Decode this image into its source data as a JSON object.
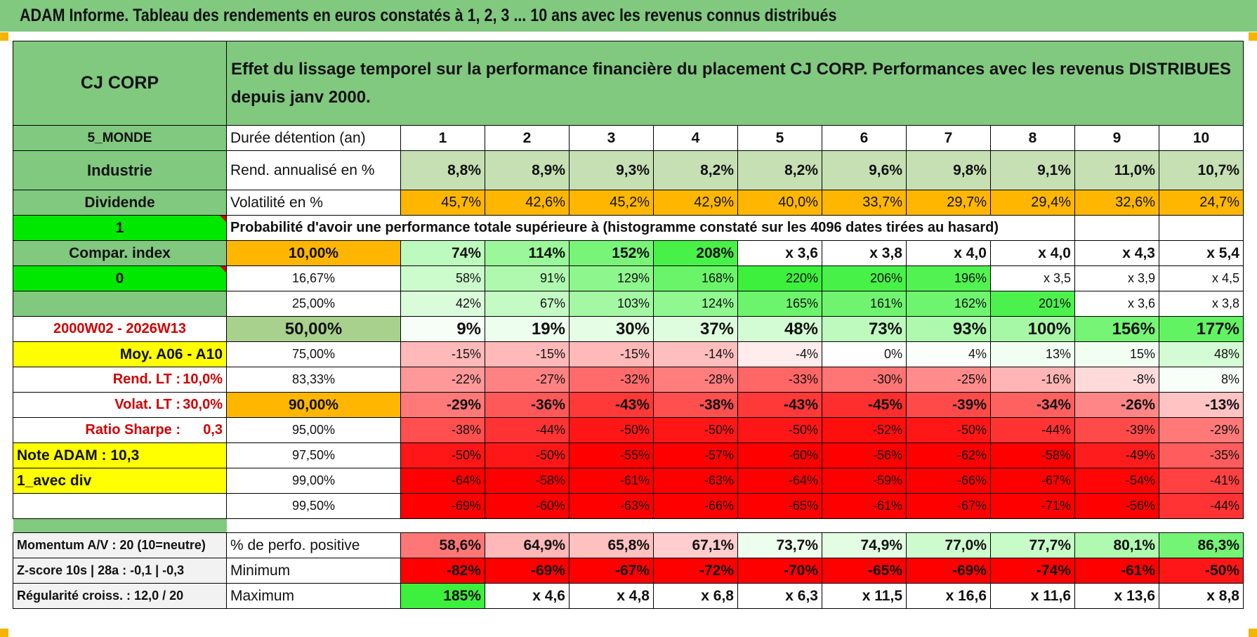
{
  "title": "ADAM Informe. Tableau des rendements en euros constatés à 1, 2, 3 ... 10 ans avec les revenus connus distribués",
  "colors": {
    "green_header": "#80c97f",
    "orange": "#ffb600",
    "yellow": "#ffff00",
    "bright_green": "#00e800",
    "red_text": "#d40000"
  },
  "header": {
    "name": "CJ CORP",
    "description": "Effet du lissage temporel sur la performance financière du placement CJ CORP. Performances avec les revenus DISTRIBUES depuis janv 2000."
  },
  "rows": {
    "duration": {
      "side": "5_MONDE",
      "label": "Durée détention (an)",
      "values": [
        "1",
        "2",
        "3",
        "4",
        "5",
        "6",
        "7",
        "8",
        "9",
        "10"
      ]
    },
    "rend": {
      "side": "Industrie",
      "label": "Rend. annualisé en %",
      "values": [
        "8,8%",
        "8,9%",
        "9,3%",
        "8,2%",
        "8,2%",
        "9,6%",
        "9,8%",
        "9,1%",
        "11,0%",
        "10,7%"
      ]
    },
    "vol": {
      "side": "Dividende",
      "label": "Volatilité en %",
      "values": [
        "45,7%",
        "42,6%",
        "45,2%",
        "42,9%",
        "40,0%",
        "33,7%",
        "29,7%",
        "29,4%",
        "32,6%",
        "24,7%"
      ]
    },
    "prob_header": {
      "side": "1",
      "text": "Probabilité d'avoir une performance totale supérieure à (histogramme constaté sur les 4096 dates tirées au hasard)"
    }
  },
  "prob_rows": [
    {
      "side": "Compar. index",
      "pct": "10,00%",
      "values": [
        "74%",
        "114%",
        "152%",
        "208%",
        "x 3,6",
        "x 3,8",
        "x 4,0",
        "x 4,0",
        "x 4,3",
        "x 5,4"
      ]
    },
    {
      "side": "0",
      "pct": "16,67%",
      "values": [
        "58%",
        "91%",
        "129%",
        "168%",
        "220%",
        "206%",
        "196%",
        "x 3,5",
        "x 3,9",
        "x 4,5"
      ]
    },
    {
      "side": "",
      "pct": "25,00%",
      "values": [
        "42%",
        "67%",
        "103%",
        "124%",
        "165%",
        "161%",
        "162%",
        "201%",
        "x 3,6",
        "x 3,8"
      ]
    },
    {
      "side": "2000W02 - 2026W13",
      "pct": "50,00%",
      "values": [
        "9%",
        "19%",
        "30%",
        "37%",
        "48%",
        "73%",
        "93%",
        "100%",
        "156%",
        "177%"
      ]
    },
    {
      "side": "Moy. A06 - A10",
      "pct": "75,00%",
      "values": [
        "-15%",
        "-15%",
        "-15%",
        "-14%",
        "-4%",
        "0%",
        "4%",
        "13%",
        "15%",
        "48%"
      ]
    },
    {
      "side": "Rend. LT :",
      "side_val": "10,0%",
      "pct": "83,33%",
      "values": [
        "-22%",
        "-27%",
        "-32%",
        "-28%",
        "-33%",
        "-30%",
        "-25%",
        "-16%",
        "-8%",
        "8%"
      ]
    },
    {
      "side": "Volat. LT :",
      "side_val": "30,0%",
      "pct": "90,00%",
      "values": [
        "-29%",
        "-36%",
        "-43%",
        "-38%",
        "-43%",
        "-45%",
        "-39%",
        "-34%",
        "-26%",
        "-13%"
      ]
    },
    {
      "side": "Ratio Sharpe :",
      "side_val": "0,3",
      "pct": "95,00%",
      "values": [
        "-38%",
        "-44%",
        "-50%",
        "-50%",
        "-50%",
        "-52%",
        "-50%",
        "-44%",
        "-39%",
        "-29%"
      ]
    },
    {
      "side": "Note ADAM : 10,3",
      "pct": "97,50%",
      "values": [
        "-50%",
        "-50%",
        "-55%",
        "-57%",
        "-60%",
        "-56%",
        "-62%",
        "-58%",
        "-49%",
        "-35%"
      ]
    },
    {
      "side": "1_avec div",
      "pct": "99,00%",
      "values": [
        "-64%",
        "-58%",
        "-61%",
        "-63%",
        "-64%",
        "-59%",
        "-66%",
        "-67%",
        "-54%",
        "-41%"
      ]
    },
    {
      "side": "",
      "pct": "99,50%",
      "values": [
        "-69%",
        "-60%",
        "-63%",
        "-66%",
        "-65%",
        "-61%",
        "-67%",
        "-71%",
        "-56%",
        "-44%"
      ]
    }
  ],
  "stats": [
    {
      "side": "Momentum A/V : 20 (10=neutre)",
      "label": "% de perfo. positive",
      "values": [
        "58,6%",
        "64,9%",
        "65,8%",
        "67,1%",
        "73,7%",
        "74,9%",
        "77,0%",
        "77,7%",
        "80,1%",
        "86,3%"
      ]
    },
    {
      "side": "Z-score 10s | 28a : -0,1 | -0,3",
      "label": "Minimum",
      "values": [
        "-82%",
        "-69%",
        "-67%",
        "-72%",
        "-70%",
        "-65%",
        "-69%",
        "-74%",
        "-61%",
        "-50%"
      ]
    },
    {
      "side": "Régularité croiss. : 12,0 / 20",
      "label": "Maximum",
      "values": [
        "185%",
        "x 4,6",
        "x 4,8",
        "x 6,8",
        "x 6,3",
        "x 11,5",
        "x 16,6",
        "x 11,6",
        "x 13,6",
        "x 8,8"
      ]
    }
  ]
}
